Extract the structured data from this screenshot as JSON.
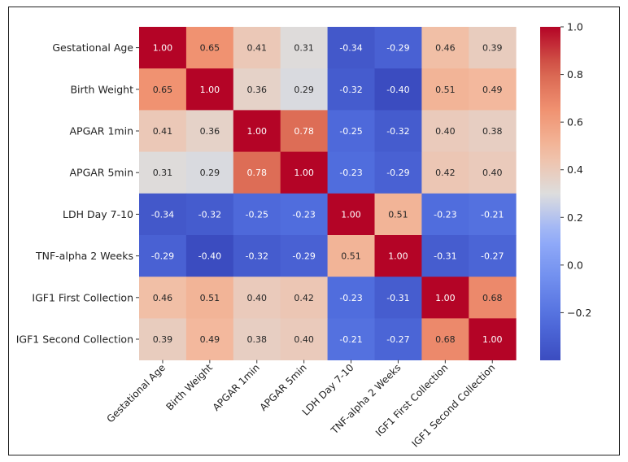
{
  "chart_data": {
    "type": "heatmap",
    "title": "",
    "xlabel": "",
    "ylabel": "",
    "labels": [
      "Gestational Age",
      "Birth Weight",
      "APGAR 1min",
      "APGAR 5min",
      "LDH Day 7-10",
      "TNF-alpha 2 Weeks",
      "IGF1 First Collection",
      "IGF1 Second Collection"
    ],
    "matrix": [
      [
        1.0,
        0.65,
        0.41,
        0.31,
        -0.34,
        -0.29,
        0.46,
        0.39
      ],
      [
        0.65,
        1.0,
        0.36,
        0.29,
        -0.32,
        -0.4,
        0.51,
        0.49
      ],
      [
        0.41,
        0.36,
        1.0,
        0.78,
        -0.25,
        -0.32,
        0.4,
        0.38
      ],
      [
        0.31,
        0.29,
        0.78,
        1.0,
        -0.23,
        -0.29,
        0.42,
        0.4
      ],
      [
        -0.34,
        -0.32,
        -0.25,
        -0.23,
        1.0,
        0.51,
        -0.23,
        -0.21
      ],
      [
        -0.29,
        -0.4,
        -0.32,
        -0.29,
        0.51,
        1.0,
        -0.31,
        -0.27
      ],
      [
        0.46,
        0.51,
        0.4,
        0.42,
        -0.23,
        -0.31,
        1.0,
        0.68
      ],
      [
        0.39,
        0.49,
        0.38,
        0.4,
        -0.21,
        -0.27,
        0.68,
        1.0
      ]
    ],
    "annotations": [
      [
        "1.00",
        "0.65",
        "0.41",
        "0.31",
        "-0.34",
        "-0.29",
        "0.46",
        "0.39"
      ],
      [
        "0.65",
        "1.00",
        "0.36",
        "0.29",
        "-0.32",
        "-0.40",
        "0.51",
        "0.49"
      ],
      [
        "0.41",
        "0.36",
        "1.00",
        "0.78",
        "-0.25",
        "-0.32",
        "0.40",
        "0.38"
      ],
      [
        "0.31",
        "0.29",
        "0.78",
        "1.00",
        "-0.23",
        "-0.29",
        "0.42",
        "0.40"
      ],
      [
        "-0.34",
        "-0.32",
        "-0.25",
        "-0.23",
        "1.00",
        "0.51",
        "-0.23",
        "-0.21"
      ],
      [
        "-0.29",
        "-0.40",
        "-0.32",
        "-0.29",
        "0.51",
        "1.00",
        "-0.31",
        "-0.27"
      ],
      [
        "0.46",
        "0.51",
        "0.40",
        "0.42",
        "-0.23",
        "-0.31",
        "1.00",
        "0.68"
      ],
      [
        "0.39",
        "0.49",
        "0.38",
        "0.40",
        "-0.21",
        "-0.27",
        "0.68",
        "1.00"
      ]
    ],
    "colormap": "coolwarm",
    "colorbar": {
      "min": -0.4,
      "max": 1.0,
      "ticks": [
        -0.2,
        0.0,
        0.2,
        0.4,
        0.6,
        0.8,
        1.0
      ],
      "tick_labels": [
        "−0.2",
        "0.0",
        "0.2",
        "0.4",
        "0.6",
        "0.8",
        "1.0"
      ],
      "placement": "right"
    }
  }
}
